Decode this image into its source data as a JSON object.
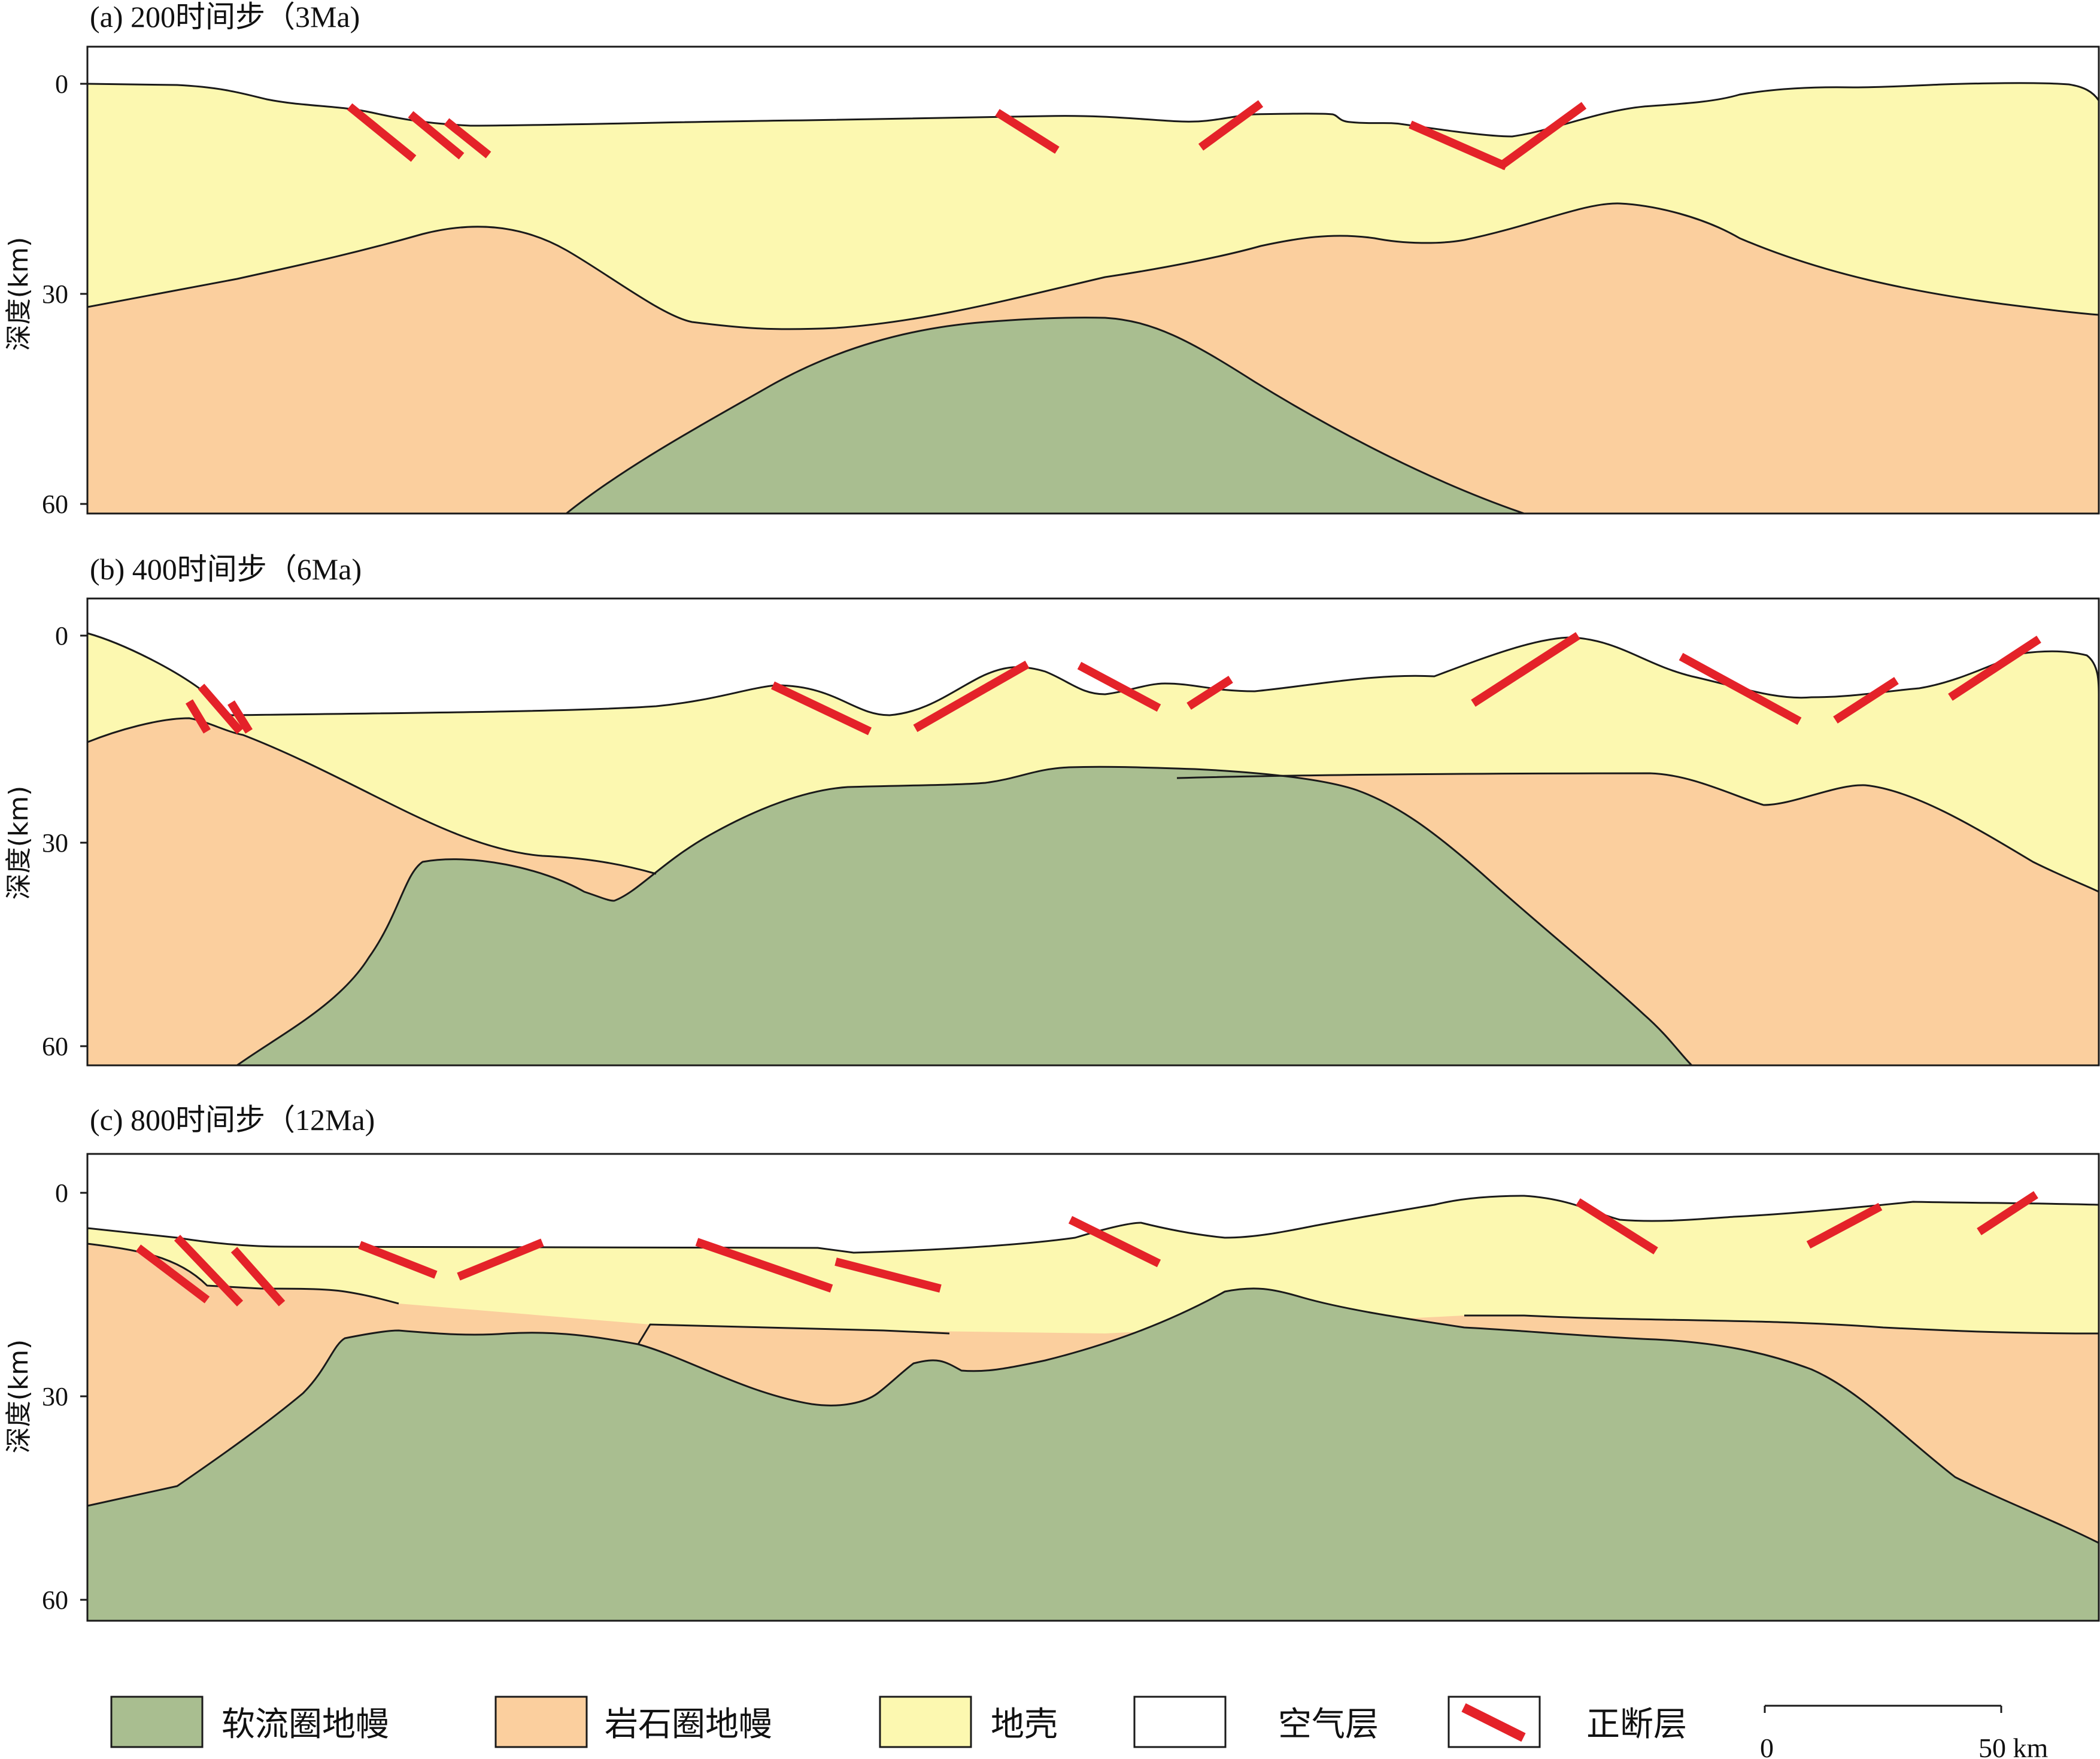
{
  "colors": {
    "asthenosphere": "#a9be90",
    "lithosphere": "#fbcf9e",
    "crust": "#fcf8b0",
    "air": "#ffffff",
    "fault": "#e42229",
    "outline": "#1a1a1a"
  },
  "panels": [
    {
      "title": "(a) 200时间步（3Ma)",
      "ylabel": "深度(km)",
      "yticks": [
        "0",
        "30",
        "60"
      ]
    },
    {
      "title": "(b) 400时间步（6Ma)",
      "ylabel": "深度(km)",
      "yticks": [
        "0",
        "30",
        "60"
      ]
    },
    {
      "title": "(c) 800时间步（12Ma)",
      "ylabel": "深度(km)",
      "yticks": [
        "0",
        "30",
        "60"
      ]
    }
  ],
  "legend": {
    "items": [
      {
        "label": "软流圈地幔",
        "key": "asthenosphere"
      },
      {
        "label": "岩石圈地幔",
        "key": "lithosphere"
      },
      {
        "label": "地壳",
        "key": "crust"
      },
      {
        "label": "空气层",
        "key": "air"
      },
      {
        "label": "正断层",
        "key": "fault"
      }
    ],
    "scale": {
      "start": "0",
      "end": "50 km"
    }
  }
}
